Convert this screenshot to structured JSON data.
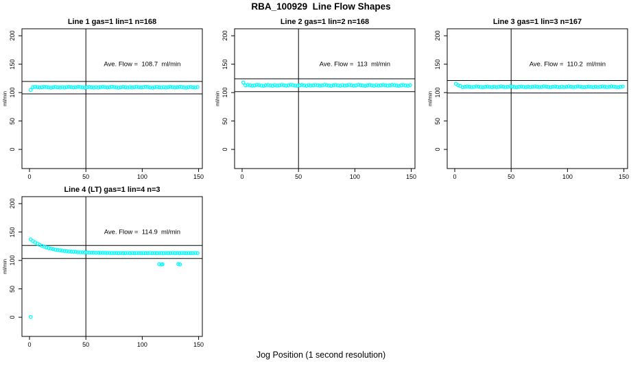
{
  "window": {
    "title": "RBA_100929  Line Flow Shapes"
  },
  "chart_data": {
    "type": "scatter",
    "title": "RBA_100929  Line Flow Shapes",
    "xlabel": "Jog Position (1 second resolution)",
    "ylabel": "ml/min",
    "xlim": [
      -6.7,
      153.3
    ],
    "ylim": [
      -33.7,
      212.3
    ],
    "xticks": [
      0,
      50,
      100,
      150
    ],
    "yticks": [
      0,
      50,
      100,
      150,
      200
    ],
    "vline_x": 50,
    "point_color": "#00ffff",
    "line_color": "#000000",
    "legend_position": "none",
    "grid": false,
    "panels": [
      {
        "title": "Line 1 gas=1 lin=1 n=168",
        "ave_label": "Ave. Flow =  108.7  ml/min",
        "ave_flow": 108.7,
        "band_lower": 97.8,
        "band_upper": 119.6,
        "x_from": 1,
        "x_step": 2,
        "y": [
          104.5,
          109.5,
          110.1,
          109.6,
          108.9,
          109.3,
          110.2,
          109.8,
          109.0,
          108.6,
          109.4,
          110.0,
          109.2,
          108.8,
          109.7,
          108.8,
          109.5,
          110.1,
          109.6,
          108.9,
          109.3,
          110.2,
          109.8,
          109.0,
          108.6,
          109.4,
          110.0,
          109.2,
          108.8,
          109.7,
          108.8,
          109.5,
          110.1,
          109.6,
          108.9,
          109.3,
          110.2,
          109.8,
          109.0,
          108.6,
          109.4,
          110.0,
          109.2,
          108.8,
          109.7,
          108.8,
          109.5,
          110.1,
          109.6,
          108.9,
          109.3,
          110.2,
          109.8,
          109.0,
          108.6,
          109.4,
          110.0,
          109.2,
          108.8,
          109.7,
          108.8,
          109.5,
          110.1,
          109.6,
          108.9,
          109.3,
          110.2,
          109.8,
          109.0,
          108.6,
          109.4,
          110.0,
          109.2,
          108.8,
          109.7
        ],
        "extra_points": []
      },
      {
        "title": "Line 2 gas=1 lin=2 n=168",
        "ave_label": "Ave. Flow =  113  ml/min",
        "ave_flow": 113,
        "band_lower": 101.7,
        "band_upper": 124.3,
        "x_from": 1,
        "x_step": 2,
        "y": [
          117.8,
          112.9,
          113.5,
          113.0,
          112.2,
          112.7,
          113.6,
          113.1,
          112.4,
          112.0,
          112.8,
          113.4,
          112.6,
          112.1,
          113.2,
          112.3,
          112.9,
          113.5,
          113.0,
          112.2,
          112.7,
          113.6,
          113.1,
          112.4,
          112.0,
          112.8,
          113.4,
          112.6,
          112.1,
          113.2,
          112.3,
          112.9,
          113.5,
          113.0,
          112.2,
          112.7,
          113.6,
          113.1,
          112.4,
          112.0,
          112.8,
          113.4,
          112.6,
          112.1,
          113.2,
          112.3,
          112.9,
          113.5,
          113.0,
          112.2,
          112.7,
          113.6,
          113.1,
          112.4,
          112.0,
          112.8,
          113.4,
          112.6,
          112.1,
          113.2,
          112.3,
          112.9,
          113.5,
          113.0,
          112.2,
          112.7,
          113.6,
          113.1,
          112.4,
          112.0,
          112.8,
          113.4,
          112.6,
          112.1,
          113.2
        ],
        "extra_points": []
      },
      {
        "title": "Line 3 gas=1 lin=3 n=167",
        "ave_label": "Ave. Flow =  110.2  ml/min",
        "ave_flow": 110.2,
        "band_lower": 99.2,
        "band_upper": 121.2,
        "x_from": 1,
        "x_step": 2,
        "y": [
          115.5,
          113.0,
          111.5,
          109.6,
          110.3,
          110.9,
          110.4,
          109.7,
          110.0,
          111.0,
          110.6,
          109.8,
          109.4,
          110.2,
          110.8,
          110.0,
          109.5,
          110.5,
          109.6,
          110.3,
          110.9,
          110.4,
          109.7,
          110.0,
          111.0,
          110.6,
          109.8,
          109.4,
          110.2,
          110.8,
          110.0,
          109.5,
          110.5,
          109.6,
          110.3,
          110.9,
          110.4,
          109.7,
          110.0,
          111.0,
          110.6,
          109.8,
          109.4,
          110.2,
          110.8,
          110.0,
          109.5,
          110.5,
          109.6,
          110.3,
          110.9,
          110.4,
          109.7,
          110.0,
          111.0,
          110.6,
          109.8,
          109.4,
          110.2,
          110.8,
          110.0,
          109.5,
          110.5,
          109.6,
          110.3,
          110.9,
          110.4,
          109.7,
          110.0,
          111.0,
          110.6,
          109.8,
          109.4,
          110.2,
          110.8
        ],
        "extra_points": []
      },
      {
        "title": "Line 4 (LT) gas=1 lin=4 n=3",
        "ave_label": "Ave. Flow =  114.9  ml/min",
        "ave_flow": 114.9,
        "band_lower": 103.4,
        "band_upper": 126.4,
        "x_from": 1,
        "x_step": 2,
        "y": [
          136.9,
          134.1,
          131.7,
          129.5,
          127.5,
          125.8,
          124.3,
          123.0,
          121.8,
          120.8,
          119.9,
          119.1,
          118.4,
          117.7,
          117.2,
          116.7,
          116.2,
          115.9,
          115.5,
          115.2,
          115.0,
          114.7,
          114.5,
          114.4,
          114.2,
          114.1,
          113.9,
          113.8,
          113.7,
          113.6,
          113.6,
          113.5,
          113.4,
          113.4,
          113.3,
          113.3,
          113.2,
          113.2,
          113.1,
          112.9,
          113.2,
          112.8,
          113.0,
          113.3,
          112.9,
          113.1,
          112.8,
          113.2,
          113.1,
          112.9,
          113.2,
          112.8,
          113.0,
          113.3,
          112.9,
          113.1,
          112.8,
          113.2,
          113.1,
          112.9,
          113.2,
          112.8,
          113.0,
          113.3,
          112.9,
          113.1,
          112.8,
          113.2,
          113.1,
          112.9,
          113.2,
          112.8,
          113.0,
          113.3,
          112.9
        ],
        "extra_points": [
          [
            1,
            0.5
          ],
          [
            115,
            93.4
          ],
          [
            117,
            92.9
          ],
          [
            118,
            93.3
          ],
          [
            132,
            93.5
          ],
          [
            133.5,
            93.1
          ]
        ]
      }
    ]
  }
}
